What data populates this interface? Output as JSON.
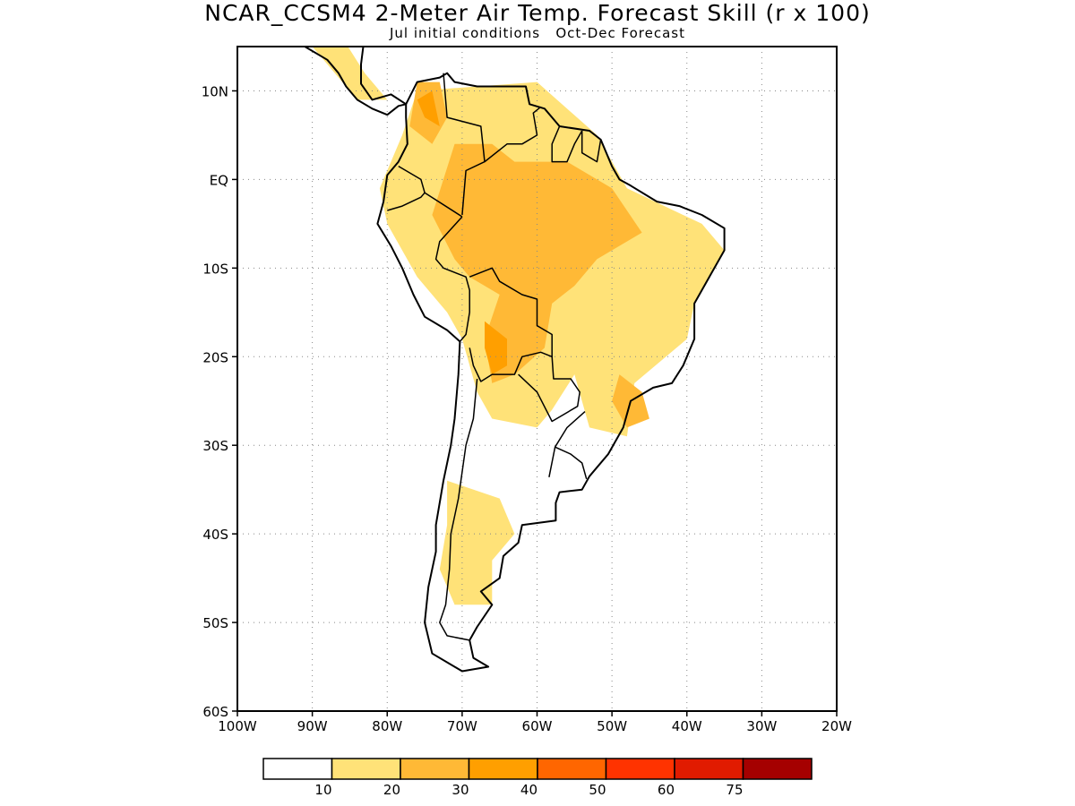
{
  "title": "NCAR_CCSM4 2-Meter Air Temp. Forecast Skill (r x 100)",
  "subtitle": "Jul initial conditions   Oct-Dec Forecast",
  "map": {
    "lon_range": [
      -100,
      -20
    ],
    "lat_range": [
      -60,
      15
    ],
    "lat_ticks": [
      {
        "value": 10,
        "label": "10N"
      },
      {
        "value": 0,
        "label": "EQ"
      },
      {
        "value": -10,
        "label": "10S"
      },
      {
        "value": -20,
        "label": "20S"
      },
      {
        "value": -30,
        "label": "30S"
      },
      {
        "value": -40,
        "label": "40S"
      },
      {
        "value": -50,
        "label": "50S"
      },
      {
        "value": -60,
        "label": "60S"
      }
    ],
    "lon_ticks": [
      {
        "value": -100,
        "label": "100W"
      },
      {
        "value": -90,
        "label": "90W"
      },
      {
        "value": -80,
        "label": "80W"
      },
      {
        "value": -70,
        "label": "70W"
      },
      {
        "value": -60,
        "label": "60W"
      },
      {
        "value": -50,
        "label": "50W"
      },
      {
        "value": -40,
        "label": "40W"
      },
      {
        "value": -30,
        "label": "30W"
      },
      {
        "value": -20,
        "label": "20W"
      }
    ],
    "grid": "dotted",
    "coastline_color": "#000000"
  },
  "skill_regions": [
    {
      "level": 1,
      "points": [
        [
          -76,
          10
        ],
        [
          -60,
          11
        ],
        [
          -52,
          5
        ],
        [
          -48,
          -1
        ],
        [
          -38,
          -5
        ],
        [
          -35,
          -8
        ],
        [
          -39,
          -14
        ],
        [
          -40,
          -18
        ],
        [
          -47,
          -23
        ],
        [
          -48,
          -29
        ],
        [
          -53,
          -28
        ],
        [
          -55,
          -22
        ],
        [
          -58,
          -26
        ],
        [
          -60,
          -28
        ],
        [
          -66,
          -27
        ],
        [
          -68,
          -24
        ],
        [
          -70,
          -18
        ],
        [
          -72,
          -15
        ],
        [
          -76,
          -11
        ],
        [
          -80,
          -5
        ],
        [
          -81,
          -1
        ],
        [
          -78,
          5
        ]
      ]
    },
    {
      "level": 1,
      "points": [
        [
          -72,
          -34
        ],
        [
          -65,
          -36
        ],
        [
          -63,
          -40
        ],
        [
          -66,
          -43
        ],
        [
          -66,
          -48
        ],
        [
          -71,
          -48
        ],
        [
          -73,
          -44
        ],
        [
          -72,
          -39
        ]
      ]
    },
    {
      "level": 1,
      "points": [
        [
          -92,
          17
        ],
        [
          -86,
          16
        ],
        [
          -83,
          12
        ],
        [
          -80,
          9
        ],
        [
          -84,
          9
        ],
        [
          -88,
          13
        ]
      ]
    },
    {
      "level": 2,
      "points": [
        [
          -71,
          4
        ],
        [
          -66,
          4
        ],
        [
          -63,
          2
        ],
        [
          -56,
          2
        ],
        [
          -50,
          -1
        ],
        [
          -46,
          -6
        ],
        [
          -52,
          -9
        ],
        [
          -55,
          -12
        ],
        [
          -58,
          -14
        ],
        [
          -59,
          -19
        ],
        [
          -63,
          -22
        ],
        [
          -66,
          -23
        ],
        [
          -67,
          -18
        ],
        [
          -65,
          -13
        ],
        [
          -69,
          -11
        ],
        [
          -71,
          -9
        ],
        [
          -74,
          -4
        ]
      ]
    },
    {
      "level": 2,
      "points": [
        [
          -76,
          11
        ],
        [
          -73,
          11
        ],
        [
          -72,
          7
        ],
        [
          -74,
          4
        ],
        [
          -77,
          6
        ]
      ]
    },
    {
      "level": 2,
      "points": [
        [
          -49,
          -22
        ],
        [
          -46,
          -24
        ],
        [
          -45,
          -27
        ],
        [
          -48,
          -28
        ],
        [
          -50,
          -25
        ]
      ]
    },
    {
      "level": 3,
      "points": [
        [
          -67,
          -16
        ],
        [
          -64,
          -18
        ],
        [
          -64,
          -21
        ],
        [
          -66,
          -22
        ],
        [
          -67,
          -19
        ]
      ]
    },
    {
      "level": 3,
      "points": [
        [
          -76,
          9
        ],
        [
          -74,
          10
        ],
        [
          -73,
          6
        ],
        [
          -75,
          7
        ]
      ]
    }
  ],
  "colorbar": {
    "colors": [
      "#ffffff",
      "#ffe278",
      "#ffb936",
      "#ff9f00",
      "#ff6600",
      "#ff3300",
      "#e11b00",
      "#a50000"
    ],
    "labels": [
      "10",
      "20",
      "30",
      "40",
      "50",
      "60",
      "75"
    ]
  }
}
